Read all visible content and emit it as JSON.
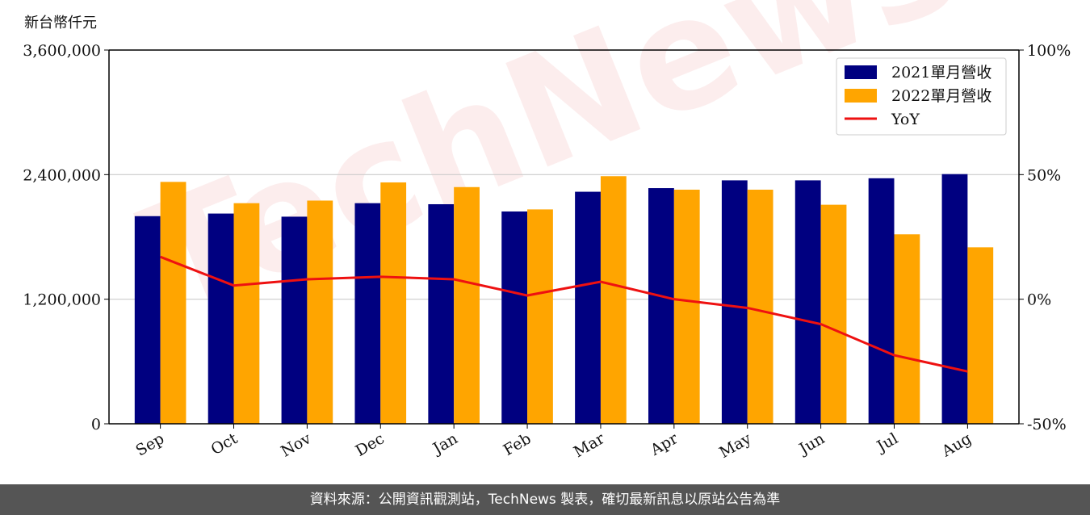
{
  "unit_label": "新台幣仟元",
  "source_text": "資料來源：公開資訊觀測站，TechNews 製表，確切最新訊息以原站公告為準",
  "watermark": "TechNews",
  "colors": {
    "series_2021": "#000080",
    "series_2022": "#FFA500",
    "yoy": "#EE1111",
    "grid": "#cccccc"
  },
  "chart_data": {
    "type": "bar",
    "categories": [
      "Sep",
      "Oct",
      "Nov",
      "Dec",
      "Jan",
      "Feb",
      "Mar",
      "Apr",
      "May",
      "Jun",
      "Jul",
      "Aug"
    ],
    "series": [
      {
        "name": "2021單月營收",
        "values": [
          2000000,
          2025000,
          1995000,
          2125000,
          2115000,
          2045000,
          2235000,
          2270000,
          2345000,
          2345000,
          2365000,
          2405000
        ]
      },
      {
        "name": "2022單月營收",
        "values": [
          2330000,
          2125000,
          2150000,
          2325000,
          2280000,
          2065000,
          2385000,
          2255000,
          2255000,
          2110000,
          1825000,
          1700000
        ]
      }
    ],
    "line_series": {
      "name": "YoY",
      "axis": "right",
      "values": [
        17,
        5.5,
        8,
        9,
        8,
        1.5,
        7,
        0,
        -3.5,
        -10,
        -22.5,
        -29
      ]
    },
    "ylim": [
      0,
      3600000
    ],
    "yticks": [
      "0",
      "1,200,000",
      "2,400,000",
      "3,600,000"
    ],
    "y2lim": [
      -50,
      100
    ],
    "y2ticks": [
      "-50%",
      "0%",
      "50%",
      "100%"
    ],
    "legend": "top-right",
    "grid": "horizontal"
  }
}
